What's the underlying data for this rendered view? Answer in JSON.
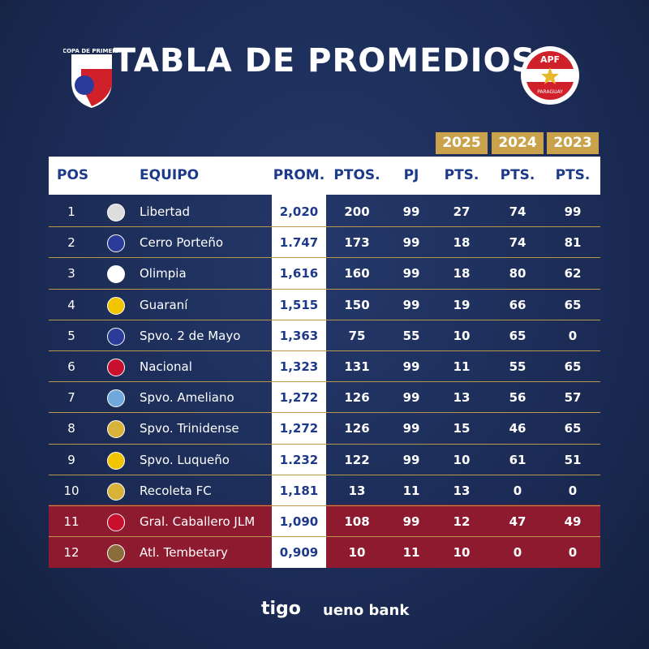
{
  "header": {
    "title": "TABLA DE PROMEDIOS",
    "left_logo": "COPA DE PRIMERA",
    "right_logo_top": "APF",
    "right_logo_bottom": "PARAGUAY"
  },
  "table": {
    "year_headers": [
      "2025",
      "2024",
      "2023"
    ],
    "columns": [
      "POS",
      "EQUIPO",
      "PROM.",
      "PTOS.",
      "PJ",
      "PTS.",
      "PTS.",
      "PTS."
    ],
    "rows": [
      [
        "1",
        "Libertad",
        "2,020",
        "200",
        "99",
        "27",
        "74",
        "99"
      ],
      [
        "2",
        "Cerro Porteño",
        "1.747",
        "173",
        "99",
        "18",
        "74",
        "81"
      ],
      [
        "3",
        "Olimpia",
        "1,616",
        "160",
        "99",
        "18",
        "80",
        "62"
      ],
      [
        "4",
        "Guaraní",
        "1,515",
        "150",
        "99",
        "19",
        "66",
        "65"
      ],
      [
        "5",
        "Spvo. 2 de Mayo",
        "1,363",
        "75",
        "55",
        "10",
        "65",
        "0"
      ],
      [
        "6",
        "Nacional",
        "1,323",
        "131",
        "99",
        "11",
        "55",
        "65"
      ],
      [
        "7",
        "Spvo. Ameliano",
        "1,272",
        "126",
        "99",
        "13",
        "56",
        "57"
      ],
      [
        "8",
        "Spvo. Trinidense",
        "1,272",
        "126",
        "99",
        "15",
        "46",
        "65"
      ],
      [
        "9",
        "Spvo. Luqueño",
        "1.232",
        "122",
        "99",
        "10",
        "61",
        "51"
      ],
      [
        "10",
        "Recoleta FC",
        "1,181",
        "13",
        "11",
        "13",
        "0",
        "0"
      ],
      [
        "11",
        "Gral. Caballero JLM",
        "1,090",
        "108",
        "99",
        "12",
        "47",
        "49"
      ],
      [
        "12",
        "Atl. Tembetary",
        "0,909",
        "10",
        "11",
        "10",
        "0",
        "0"
      ]
    ]
  },
  "footer": {
    "sponsors": [
      "tigo",
      "ueno bank"
    ]
  }
}
